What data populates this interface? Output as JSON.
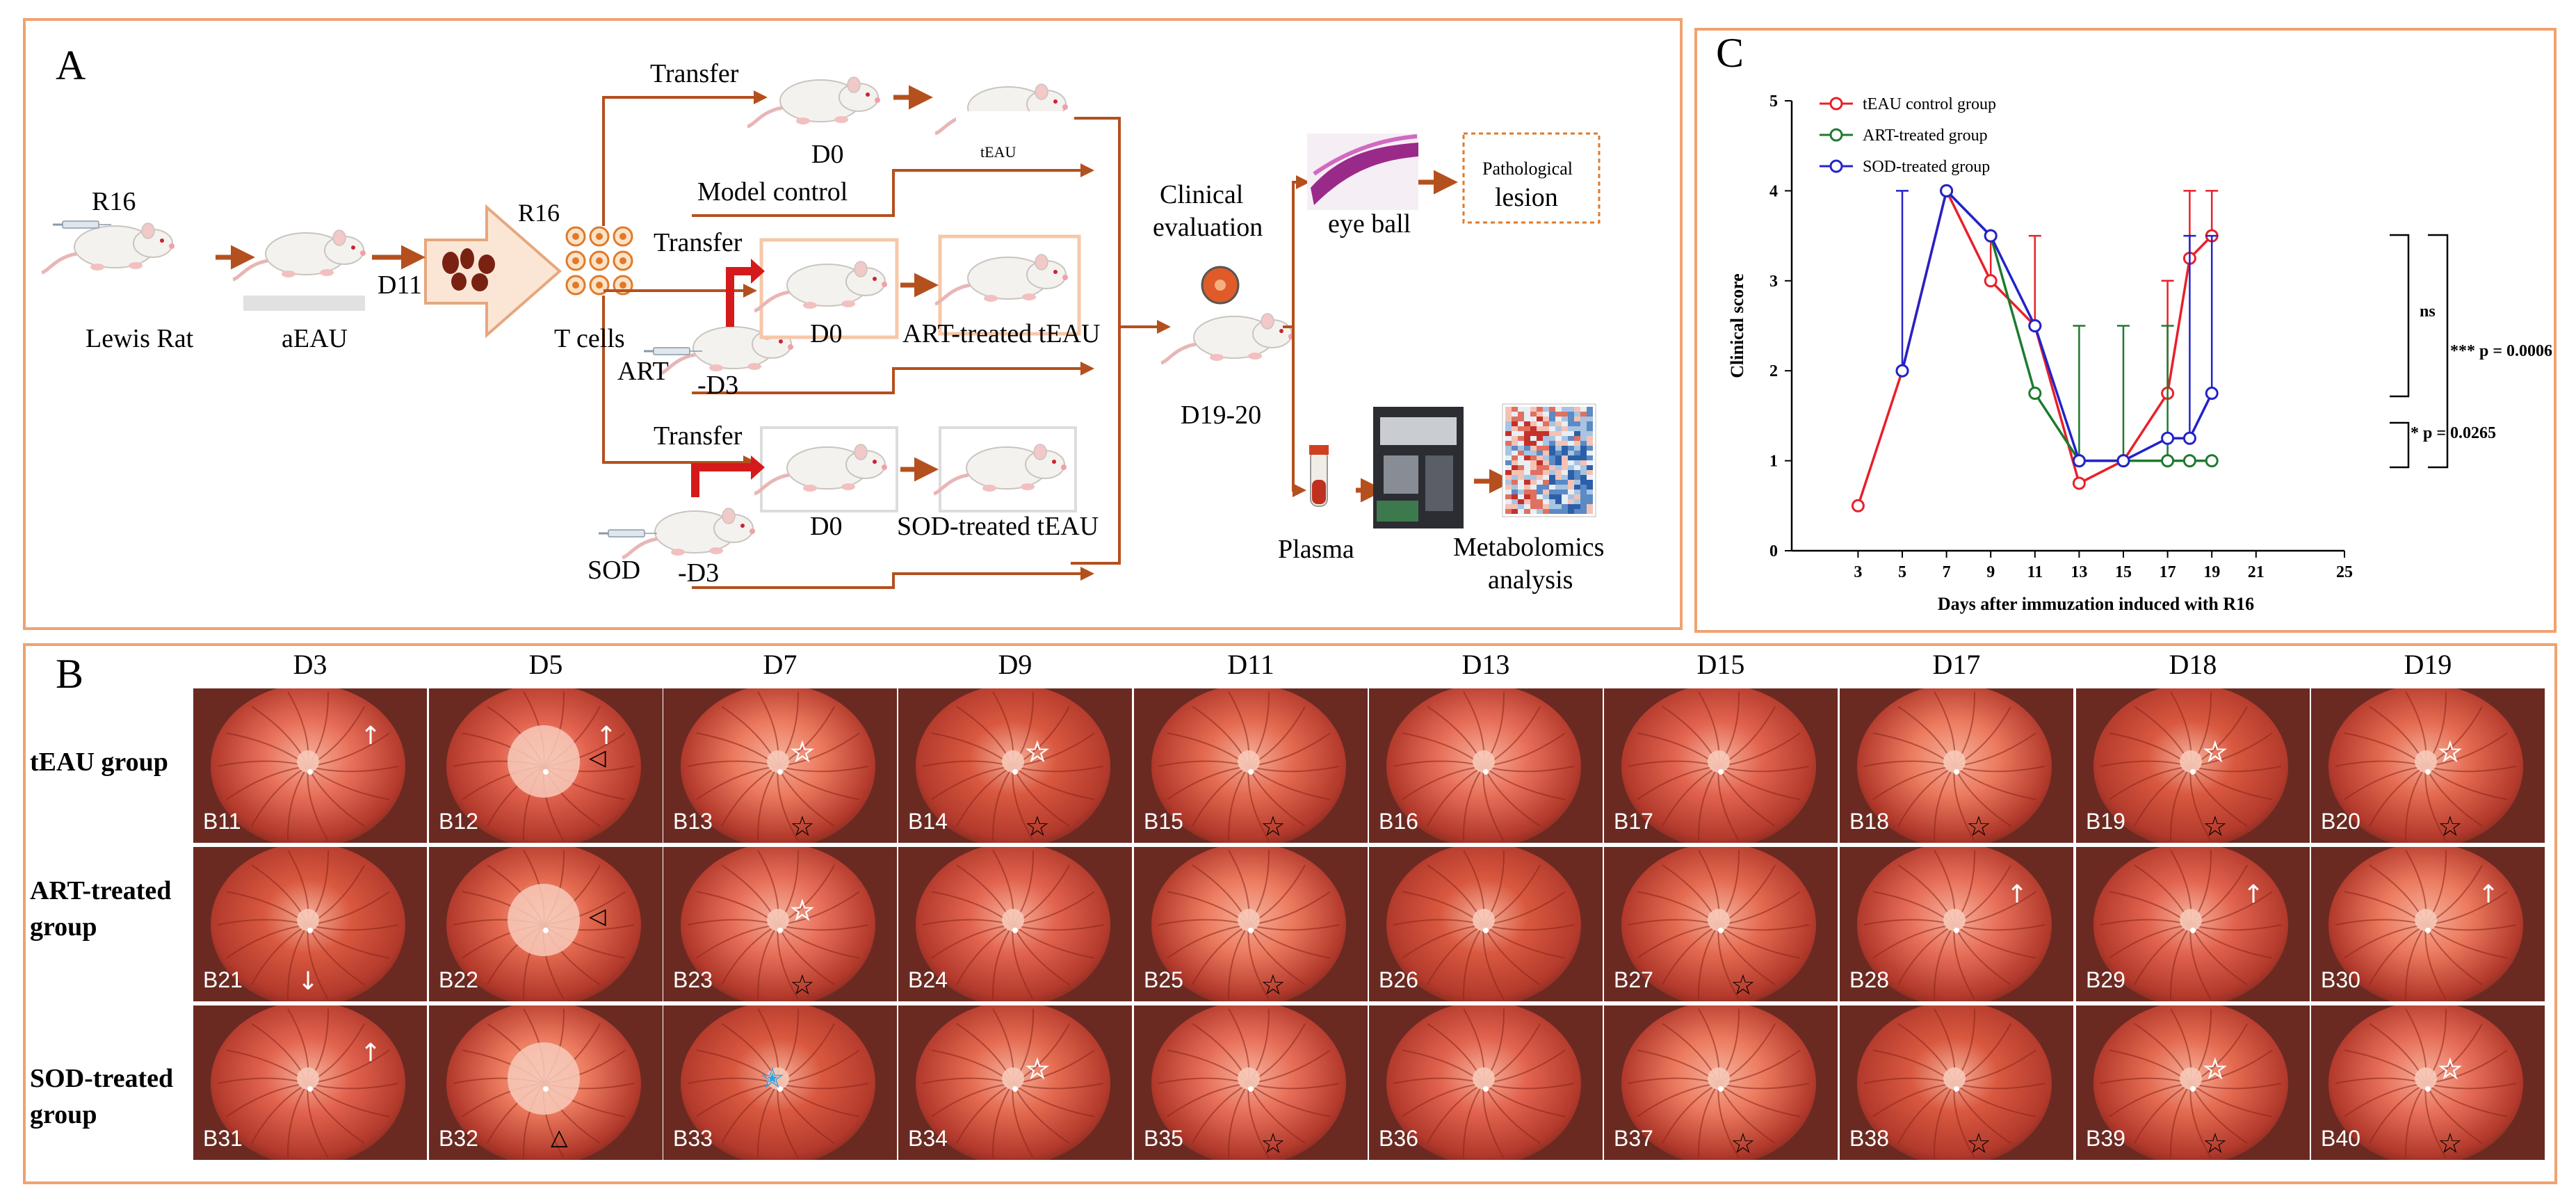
{
  "panel_a": {
    "label": "A",
    "steps": {
      "r16_left": "R16",
      "lewis": "Lewis Rat",
      "aeau": "aEAU",
      "d11": "D11",
      "r16_top": "R16",
      "tcells": "T cells",
      "transfer1": "Transfer",
      "d0_1": "D0",
      "teau": "tEAU",
      "model_control": "Model control",
      "transfer2": "Transfer",
      "d0_2": "D0",
      "art_teau": "ART-treated tEAU",
      "art": "ART",
      "art_d3": "-D3",
      "transfer3": "Transfer",
      "d0_3": "D0",
      "sod_teau": "SOD-treated tEAU",
      "sod": "SOD",
      "sod_d3": "-D3",
      "clinical": "Clinical",
      "evaluation": "evaluation",
      "d1920": "D19-20",
      "eyeball": "eye ball",
      "patho1": "Pathological",
      "patho2": "lesion",
      "plasma": "Plasma",
      "metab1": "Metabolomics",
      "metab2": "analysis"
    }
  },
  "panel_c": {
    "label": "C",
    "ns": "ns",
    "p1": "*** p = 0.0006",
    "p2": "* p = 0.0265"
  },
  "chart_data": {
    "type": "line",
    "title": "",
    "xlabel": "Days after immuzation induced with R16",
    "ylabel": "Clinical score",
    "xlim": [
      0,
      25
    ],
    "ylim": [
      0,
      5
    ],
    "xticks": [
      3,
      5,
      7,
      9,
      11,
      13,
      15,
      17,
      19,
      21,
      25
    ],
    "yticks": [
      0,
      1,
      2,
      3,
      4,
      5
    ],
    "series": [
      {
        "name": "tEAU control group",
        "color": "#e8202a",
        "x": [
          3,
          5,
          7,
          9,
          11,
          13,
          15,
          17,
          18,
          19
        ],
        "y": [
          0.5,
          2,
          4,
          3,
          2.5,
          0.75,
          1,
          1.75,
          3.25,
          3.5
        ],
        "err_hi": [
          0,
          0,
          0,
          0.5,
          1.0,
          0,
          0,
          1.25,
          0.75,
          0.5
        ],
        "err_lo": [
          0,
          0,
          0,
          0,
          0,
          0,
          0,
          0,
          0,
          0
        ]
      },
      {
        "name": "ART-treated group",
        "color": "#1e7a2e",
        "x": [
          7,
          9,
          11,
          13,
          15,
          17,
          18,
          19
        ],
        "y": [
          4,
          3.5,
          1.75,
          1,
          1,
          1,
          1,
          1
        ],
        "err_hi": [
          0,
          0,
          0,
          1.5,
          1.5,
          1.5,
          0,
          0
        ],
        "err_lo": [
          0,
          0,
          0,
          0,
          0,
          0,
          0,
          0
        ]
      },
      {
        "name": "SOD-treated group",
        "color": "#2323c8",
        "x": [
          5,
          7,
          9,
          11,
          13,
          15,
          17,
          18,
          19
        ],
        "y": [
          2,
          4,
          3.5,
          2.5,
          1,
          1,
          1.25,
          1.25,
          1.75
        ],
        "err_hi": [
          2,
          0,
          0,
          0,
          0,
          0,
          0,
          2.25,
          1.75
        ],
        "err_lo": [
          0,
          0,
          0,
          0,
          0,
          0,
          0,
          0,
          0
        ]
      }
    ],
    "legend": "top-left"
  },
  "panel_b": {
    "label": "B",
    "days": [
      "D3",
      "D5",
      "D7",
      "D9",
      "D11",
      "D13",
      "D15",
      "D17",
      "D18",
      "D19"
    ],
    "rows": [
      {
        "name": "tEAU group",
        "line1": "tEAU group",
        "line2": "",
        "cells": [
          {
            "id": "B11",
            "marks": [
              "arrow-up"
            ]
          },
          {
            "id": "B12",
            "marks": [
              "triangle-left",
              "arrow-up"
            ]
          },
          {
            "id": "B13",
            "marks": [
              "white-star",
              "black-star"
            ]
          },
          {
            "id": "B14",
            "marks": [
              "white-star",
              "black-star"
            ]
          },
          {
            "id": "B15",
            "marks": [
              "black-star"
            ]
          },
          {
            "id": "B16",
            "marks": []
          },
          {
            "id": "B17",
            "marks": []
          },
          {
            "id": "B18",
            "marks": [
              "black-star"
            ]
          },
          {
            "id": "B19",
            "marks": [
              "white-star",
              "black-star"
            ]
          },
          {
            "id": "B20",
            "marks": [
              "white-star",
              "black-star"
            ]
          }
        ]
      },
      {
        "name": "ART-treated group",
        "line1": "ART-treated",
        "line2": "group",
        "cells": [
          {
            "id": "B21",
            "marks": [
              "arrow-down"
            ]
          },
          {
            "id": "B22",
            "marks": [
              "triangle-left"
            ]
          },
          {
            "id": "B23",
            "marks": [
              "white-star",
              "black-star"
            ]
          },
          {
            "id": "B24",
            "marks": []
          },
          {
            "id": "B25",
            "marks": [
              "black-star"
            ]
          },
          {
            "id": "B26",
            "marks": []
          },
          {
            "id": "B27",
            "marks": [
              "black-star"
            ]
          },
          {
            "id": "B28",
            "marks": [
              "arrow-up"
            ]
          },
          {
            "id": "B29",
            "marks": [
              "arrow-up"
            ]
          },
          {
            "id": "B30",
            "marks": [
              "arrow-up"
            ]
          }
        ]
      },
      {
        "name": "SOD-treated group",
        "line1": "SOD-treated",
        "line2": "group",
        "cells": [
          {
            "id": "B31",
            "marks": [
              "arrow-up"
            ]
          },
          {
            "id": "B32",
            "marks": [
              "triangle-up"
            ]
          },
          {
            "id": "B33",
            "marks": [
              "blue-star"
            ]
          },
          {
            "id": "B34",
            "marks": [
              "white-star"
            ]
          },
          {
            "id": "B35",
            "marks": [
              "black-star"
            ]
          },
          {
            "id": "B36",
            "marks": []
          },
          {
            "id": "B37",
            "marks": [
              "black-star"
            ]
          },
          {
            "id": "B38",
            "marks": [
              "black-star"
            ]
          },
          {
            "id": "B39",
            "marks": [
              "white-star",
              "black-star"
            ]
          },
          {
            "id": "B40",
            "marks": [
              "white-star",
              "black-star"
            ]
          }
        ]
      }
    ]
  },
  "colors": {
    "frame": "#f0a270",
    "arrow": "#b4501e",
    "red_arrow": "#d41a1a",
    "fundus": "#c8483a"
  }
}
